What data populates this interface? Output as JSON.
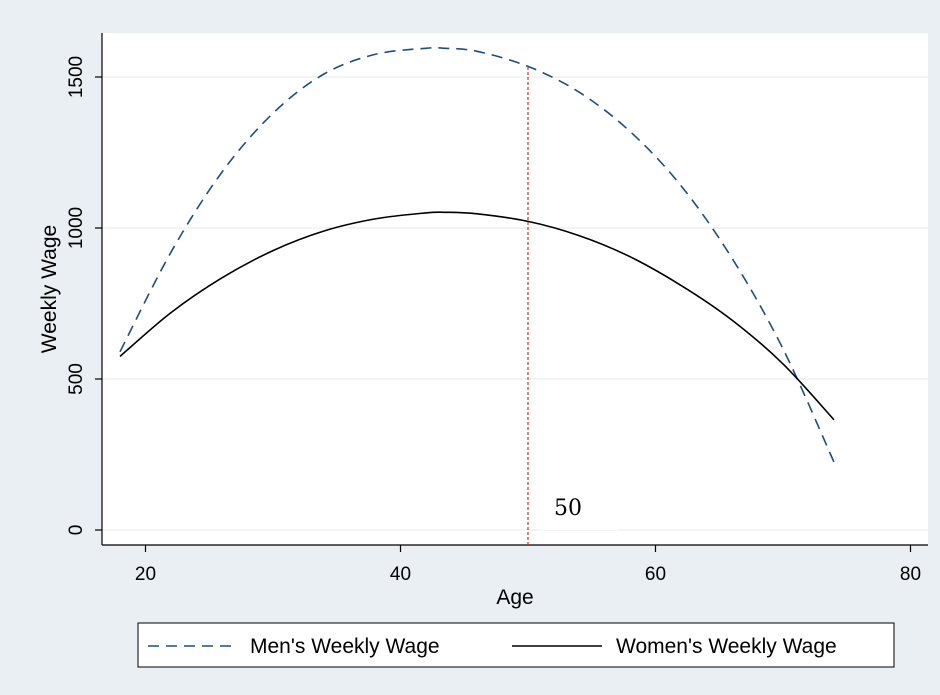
{
  "chart_data": {
    "type": "line",
    "xlabel": "Age",
    "ylabel": "Weekly Wage",
    "xlim": [
      18,
      80
    ],
    "ylim": [
      0,
      1600
    ],
    "xticks": [
      20,
      40,
      60,
      80
    ],
    "yticks": [
      0,
      500,
      1000,
      1500
    ],
    "grid": true,
    "legend_position": "bottom",
    "x": [
      18,
      22,
      26,
      30,
      34,
      38,
      42,
      43.5,
      46,
      50,
      54,
      58,
      62,
      66,
      70,
      74
    ],
    "series": [
      {
        "name": "Men's Weekly Wage",
        "style": "dashed",
        "color": "#1f4e79",
        "values": [
          590,
          920,
          1185,
          1380,
          1510,
          1575,
          1595,
          1595,
          1585,
          1535,
          1450,
          1320,
          1140,
          900,
          600,
          225
        ]
      },
      {
        "name": "Women's Weekly Wage",
        "style": "solid",
        "color": "#000000",
        "values": [
          575,
          720,
          835,
          925,
          990,
          1030,
          1050,
          1052,
          1047,
          1022,
          975,
          905,
          810,
          695,
          550,
          365
        ]
      }
    ],
    "reference_line": {
      "x": 50,
      "color": "#c0392b",
      "style": "dashed"
    },
    "annotations": [
      {
        "text": "50",
        "x": 50
      }
    ]
  }
}
